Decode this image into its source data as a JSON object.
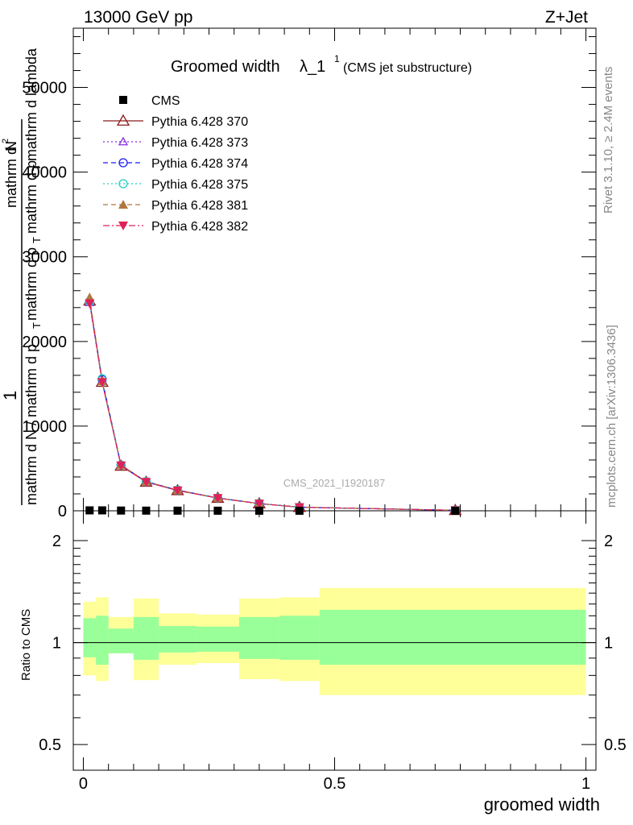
{
  "header": {
    "energy_label": "13000 GeV pp",
    "process_label": "Z+Jet",
    "title_main": "Groomed width",
    "title_lambda": "λ_1",
    "title_sup": "1",
    "title_sub": "(CMS jet substructure)"
  },
  "side_text": {
    "rivet": "Rivet 3.1.10, ≥ 2.4M events",
    "mcplots": "mcplots.cern.ch [arXiv:1306.3436]"
  },
  "watermark": "CMS_2021_I1920187",
  "main_ylabel": {
    "one": "1",
    "frac_den": "mathrm d N / mathrm d p",
    "frac_den_sub": "T",
    "numer_lines": [
      "mathrm d",
      "mathrm d p",
      "mathrm d p",
      "mathrm d lambda"
    ],
    "numer_top": "mathrm d",
    "numer_N": "N",
    "numer_exp": "2",
    "numer_pT1": "mathrm d p",
    "numer_pT1_sub": "T",
    "numer_pT2": "mathrm d p",
    "numer_pT2_sub": "T",
    "numer_lambda": "mathrm d lambda"
  },
  "ratio_ylabel": "Ratio to CMS",
  "xlabel": "groomed width",
  "legend": [
    {
      "label": "CMS",
      "color": "#000000",
      "marker": "square-filled",
      "line": "none"
    },
    {
      "label": "Pythia 6.428 370",
      "color": "#8b1a1a",
      "marker": "triangle-open",
      "line": "solid"
    },
    {
      "label": "Pythia 6.428 373",
      "color": "#8a2be2",
      "marker": "triangle-open-small",
      "line": "dotted"
    },
    {
      "label": "Pythia 6.428 374",
      "color": "#1a1aff",
      "marker": "circle-open",
      "line": "dashed"
    },
    {
      "label": "Pythia 6.428 375",
      "color": "#20d0c0",
      "marker": "circle-open",
      "line": "dotted"
    },
    {
      "label": "Pythia 6.428 381",
      "color": "#b07840",
      "marker": "triangle-filled",
      "line": "dashed"
    },
    {
      "label": "Pythia 6.428 382",
      "color": "#e0205a",
      "marker": "triangle-down-filled",
      "line": "dashdot"
    }
  ],
  "chart_data": {
    "type": "line",
    "x": [
      0.0125,
      0.0375,
      0.075,
      0.125,
      0.1875,
      0.2675,
      0.35,
      0.43,
      0.74
    ],
    "ylim": [
      0,
      57000
    ],
    "xlim": [
      -0.02,
      1.02
    ],
    "yticks": [
      0,
      10000,
      20000,
      30000,
      40000,
      50000
    ],
    "ytick_labels": [
      "0",
      "10000",
      "20000",
      "30000",
      "40000",
      "50000"
    ],
    "xticks": [
      0,
      0.5,
      1
    ],
    "xtick_labels": [
      "0",
      "0.5",
      "1"
    ],
    "cms_values": [
      50,
      50,
      30,
      20,
      15,
      10,
      8,
      5,
      2
    ],
    "series": [
      {
        "name": "Pythia 6.428 370",
        "values": [
          24800,
          15200,
          5300,
          3400,
          2400,
          1500,
          850,
          420,
          60
        ]
      },
      {
        "name": "Pythia 6.428 373",
        "values": [
          24600,
          15300,
          5350,
          3400,
          2400,
          1500,
          850,
          420,
          60
        ]
      },
      {
        "name": "Pythia 6.428 374",
        "values": [
          24700,
          15500,
          5400,
          3450,
          2450,
          1520,
          860,
          430,
          60
        ]
      },
      {
        "name": "Pythia 6.428 375",
        "values": [
          24700,
          15600,
          5400,
          3450,
          2450,
          1520,
          860,
          430,
          60
        ]
      },
      {
        "name": "Pythia 6.428 381",
        "values": [
          25200,
          15300,
          5400,
          3450,
          2450,
          1520,
          860,
          430,
          60
        ]
      },
      {
        "name": "Pythia 6.428 382",
        "values": [
          24500,
          15200,
          5350,
          3400,
          2400,
          1500,
          850,
          420,
          60
        ]
      }
    ],
    "ratio": {
      "ylim_log": [
        0.42,
        2.45
      ],
      "yticks": [
        0.5,
        1,
        2
      ],
      "ytick_labels": [
        "0.5",
        "1",
        "2"
      ],
      "bins": [
        {
          "x0": 0.0,
          "x1": 0.025,
          "inner": [
            0.905,
            1.18
          ],
          "outer": [
            0.8,
            1.32
          ]
        },
        {
          "x0": 0.025,
          "x1": 0.05,
          "inner": [
            0.86,
            1.2
          ],
          "outer": [
            0.77,
            1.36
          ]
        },
        {
          "x0": 0.05,
          "x1": 0.1,
          "inner": [
            0.93,
            1.1
          ],
          "outer": [
            0.93,
            1.19
          ]
        },
        {
          "x0": 0.1,
          "x1": 0.15,
          "inner": [
            0.89,
            1.19
          ],
          "outer": [
            0.775,
            1.35
          ]
        },
        {
          "x0": 0.15,
          "x1": 0.225,
          "inner": [
            0.935,
            1.12
          ],
          "outer": [
            0.86,
            1.22
          ]
        },
        {
          "x0": 0.225,
          "x1": 0.31,
          "inner": [
            0.94,
            1.115
          ],
          "outer": [
            0.87,
            1.21
          ]
        },
        {
          "x0": 0.31,
          "x1": 0.39,
          "inner": [
            0.895,
            1.19
          ],
          "outer": [
            0.78,
            1.35
          ]
        },
        {
          "x0": 0.39,
          "x1": 0.47,
          "inner": [
            0.89,
            1.2
          ],
          "outer": [
            0.77,
            1.36
          ]
        },
        {
          "x0": 0.47,
          "x1": 1.0,
          "inner": [
            0.86,
            1.25
          ],
          "outer": [
            0.7,
            1.45
          ]
        }
      ]
    }
  },
  "colors": {
    "band_inner": "#99ff99",
    "band_outer": "#ffff99",
    "side_text": "#888888",
    "watermark": "#aaaaaa"
  }
}
